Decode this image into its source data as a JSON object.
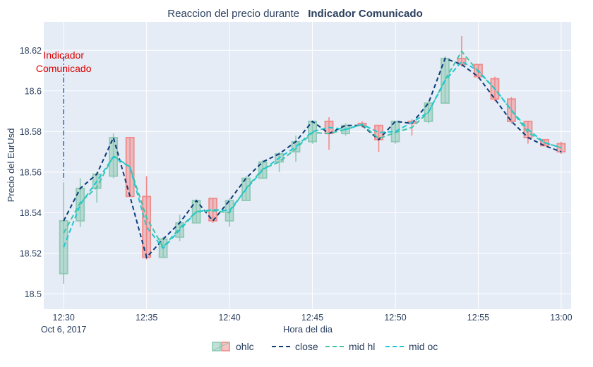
{
  "chart_data": {
    "type": "candlestick",
    "title_prefix": "Reaccion del precio durante",
    "title_bold": "Indicador Comunicado",
    "xlabel": "Hora del dia",
    "ylabel": "Precio del EurUsd",
    "x_range": [
      -1.2,
      30.6
    ],
    "y_range": [
      18.4925,
      18.634
    ],
    "x_ticks": [
      {
        "x": 0,
        "label": "12:30",
        "sublabel": "Oct 6, 2017"
      },
      {
        "x": 5,
        "label": "12:35"
      },
      {
        "x": 10,
        "label": "12:40"
      },
      {
        "x": 15,
        "label": "12:45"
      },
      {
        "x": 20,
        "label": "12:50"
      },
      {
        "x": 25,
        "label": "12:55"
      },
      {
        "x": 30,
        "label": "13:00"
      }
    ],
    "y_ticks": [
      18.5,
      18.52,
      18.54,
      18.56,
      18.58,
      18.6,
      18.62
    ],
    "y_tick_labels": [
      "18.5",
      "18.52",
      "18.54",
      "18.56",
      "18.58",
      "18.6",
      "18.62"
    ],
    "colors": {
      "increasing_line": "#8fc9b5",
      "increasing_fill": "rgba(143,201,181,0.55)",
      "decreasing_line": "#f08a8a",
      "decreasing_fill": "rgba(240,138,138,0.5)",
      "close": "#0d3c78",
      "mid_hl": "#40c4a8",
      "mid_oc": "#1ec8d0",
      "annotation_line": "#1f77e8",
      "annotation_text": "#dd0000",
      "plot_bg": "#e5ecf6",
      "grid": "#ffffff"
    },
    "candles": [
      {
        "x": 0,
        "open": 18.51,
        "high": 18.555,
        "low": 18.505,
        "close": 18.536
      },
      {
        "x": 1,
        "open": 18.536,
        "high": 18.557,
        "low": 18.533,
        "close": 18.552
      },
      {
        "x": 2,
        "open": 18.552,
        "high": 18.56,
        "low": 18.545,
        "close": 18.559
      },
      {
        "x": 3,
        "open": 18.558,
        "high": 18.579,
        "low": 18.557,
        "close": 18.577
      },
      {
        "x": 4,
        "open": 18.577,
        "high": 18.577,
        "low": 18.548,
        "close": 18.548
      },
      {
        "x": 5,
        "open": 18.548,
        "high": 18.558,
        "low": 18.517,
        "close": 18.518
      },
      {
        "x": 6,
        "open": 18.518,
        "high": 18.528,
        "low": 18.518,
        "close": 18.527
      },
      {
        "x": 7,
        "open": 18.528,
        "high": 18.539,
        "low": 18.526,
        "close": 18.535
      },
      {
        "x": 8,
        "open": 18.535,
        "high": 18.546,
        "low": 18.535,
        "close": 18.546
      },
      {
        "x": 9,
        "open": 18.547,
        "high": 18.547,
        "low": 18.535,
        "close": 18.536
      },
      {
        "x": 10,
        "open": 18.536,
        "high": 18.547,
        "low": 18.533,
        "close": 18.546
      },
      {
        "x": 11,
        "open": 18.546,
        "high": 18.558,
        "low": 18.546,
        "close": 18.557
      },
      {
        "x": 12,
        "open": 18.557,
        "high": 18.566,
        "low": 18.557,
        "close": 18.565
      },
      {
        "x": 13,
        "open": 18.565,
        "high": 18.57,
        "low": 18.56,
        "close": 18.569
      },
      {
        "x": 14,
        "open": 18.57,
        "high": 18.578,
        "low": 18.565,
        "close": 18.575
      },
      {
        "x": 15,
        "open": 18.575,
        "high": 18.585,
        "low": 18.574,
        "close": 18.585
      },
      {
        "x": 16,
        "open": 18.585,
        "high": 18.587,
        "low": 18.571,
        "close": 18.579
      },
      {
        "x": 17,
        "open": 18.579,
        "high": 18.584,
        "low": 18.578,
        "close": 18.583
      },
      {
        "x": 18,
        "open": 18.584,
        "high": 18.585,
        "low": 18.582,
        "close": 18.583
      },
      {
        "x": 19,
        "open": 18.583,
        "high": 18.583,
        "low": 18.57,
        "close": 18.576
      },
      {
        "x": 20,
        "open": 18.575,
        "high": 18.585,
        "low": 18.574,
        "close": 18.585
      },
      {
        "x": 21,
        "open": 18.585,
        "high": 18.586,
        "low": 18.578,
        "close": 18.584
      },
      {
        "x": 22,
        "open": 18.585,
        "high": 18.595,
        "low": 18.584,
        "close": 18.594
      },
      {
        "x": 23,
        "open": 18.594,
        "high": 18.617,
        "low": 18.594,
        "close": 18.616
      },
      {
        "x": 24,
        "open": 18.616,
        "high": 18.627,
        "low": 18.612,
        "close": 18.613
      },
      {
        "x": 25,
        "open": 18.613,
        "high": 18.613,
        "low": 18.606,
        "close": 18.607
      },
      {
        "x": 26,
        "open": 18.606,
        "high": 18.607,
        "low": 18.595,
        "close": 18.596
      },
      {
        "x": 27,
        "open": 18.596,
        "high": 18.597,
        "low": 18.584,
        "close": 18.585
      },
      {
        "x": 28,
        "open": 18.585,
        "high": 18.585,
        "low": 18.574,
        "close": 18.577
      },
      {
        "x": 29,
        "open": 18.576,
        "high": 18.576,
        "low": 18.573,
        "close": 18.573
      },
      {
        "x": 30,
        "open": 18.574,
        "high": 18.575,
        "low": 18.569,
        "close": 18.57
      }
    ],
    "annotation": {
      "text_lines": [
        "Indicador",
        "Comunicado"
      ],
      "x": 0,
      "y_top": 18.617,
      "y_bottom": 18.556
    },
    "legend": [
      {
        "key": "ohlc",
        "label": "ohlc",
        "kind": "candle"
      },
      {
        "key": "close",
        "label": "close",
        "kind": "dash"
      },
      {
        "key": "mid_hl",
        "label": "mid hl",
        "kind": "dash"
      },
      {
        "key": "mid_oc",
        "label": "mid oc",
        "kind": "dash"
      }
    ],
    "grid": true,
    "legend_position": "bottom-center"
  }
}
